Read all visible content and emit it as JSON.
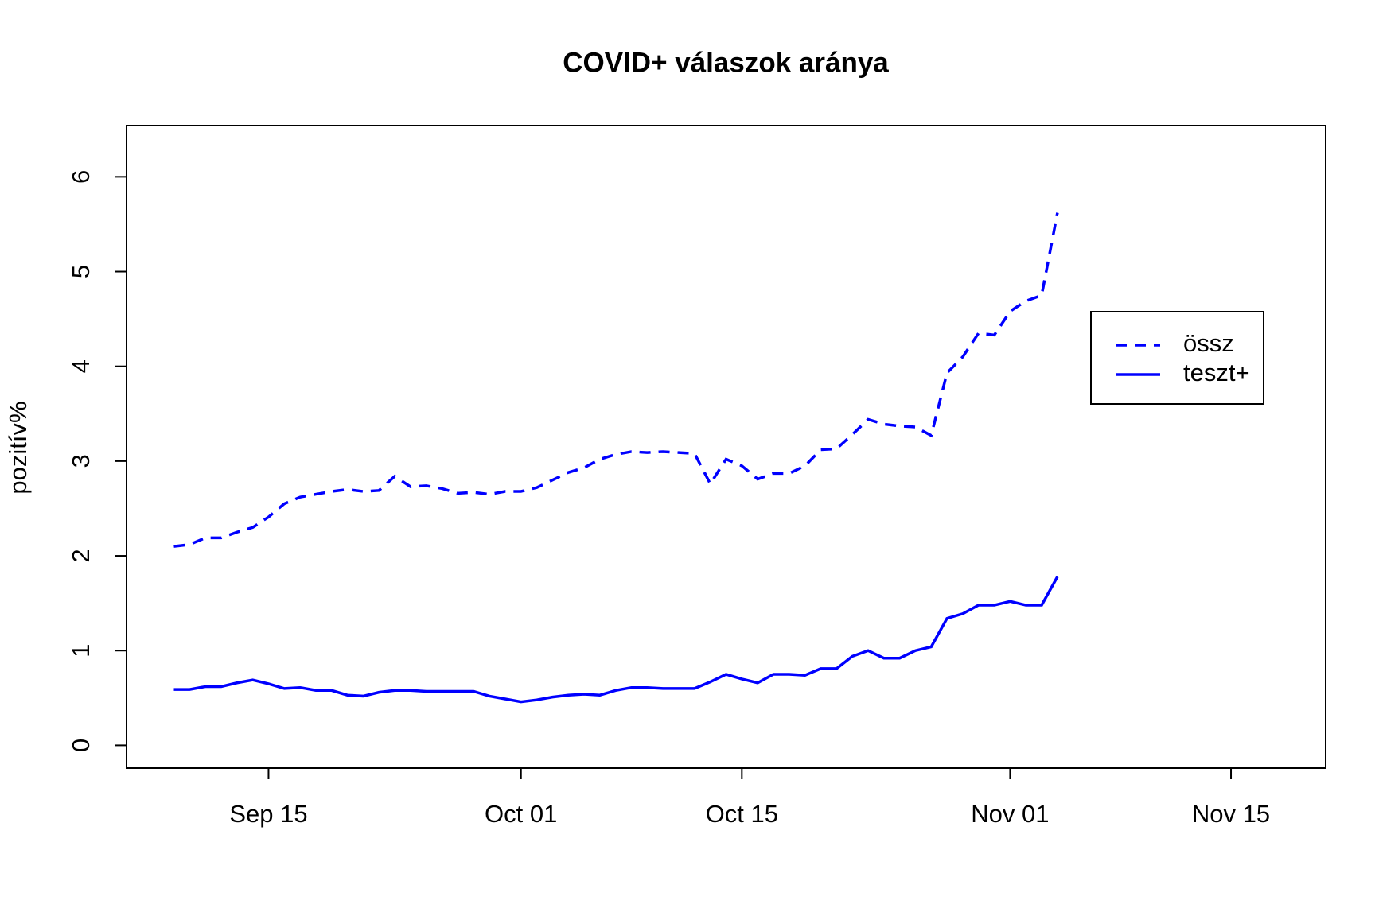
{
  "chart_data": {
    "type": "line",
    "title": "COVID+ válaszok aránya",
    "y_label": "pozitív%",
    "x": [
      "Sep 09",
      "Sep 10",
      "Sep 11",
      "Sep 12",
      "Sep 13",
      "Sep 14",
      "Sep 15",
      "Sep 16",
      "Sep 17",
      "Sep 18",
      "Sep 19",
      "Sep 20",
      "Sep 21",
      "Sep 22",
      "Sep 23",
      "Sep 24",
      "Sep 25",
      "Sep 26",
      "Sep 27",
      "Sep 28",
      "Sep 29",
      "Sep 30",
      "Oct 01",
      "Oct 02",
      "Oct 03",
      "Oct 04",
      "Oct 05",
      "Oct 06",
      "Oct 07",
      "Oct 08",
      "Oct 09",
      "Oct 10",
      "Oct 11",
      "Oct 12",
      "Oct 13",
      "Oct 14",
      "Oct 15",
      "Oct 16",
      "Oct 17",
      "Oct 18",
      "Oct 19",
      "Oct 20",
      "Oct 21",
      "Oct 22",
      "Oct 23",
      "Oct 24",
      "Oct 25",
      "Oct 26",
      "Oct 27",
      "Oct 28",
      "Oct 29",
      "Oct 30",
      "Oct 31",
      "Nov 01",
      "Nov 02",
      "Nov 03",
      "Nov 04"
    ],
    "series": [
      {
        "name": "össz",
        "color": "#0000ff",
        "line_style": "dashed",
        "values": [
          2.1,
          2.12,
          2.19,
          2.19,
          2.25,
          2.3,
          2.41,
          2.55,
          2.62,
          2.65,
          2.68,
          2.7,
          2.68,
          2.69,
          2.84,
          2.73,
          2.74,
          2.71,
          2.66,
          2.67,
          2.65,
          2.68,
          2.68,
          2.72,
          2.8,
          2.88,
          2.93,
          3.02,
          3.07,
          3.1,
          3.09,
          3.1,
          3.09,
          3.08,
          2.76,
          3.02,
          2.95,
          2.81,
          2.87,
          2.87,
          2.95,
          3.12,
          3.13,
          3.28,
          3.44,
          3.39,
          3.37,
          3.36,
          3.27,
          3.93,
          4.1,
          4.35,
          4.33,
          4.58,
          4.69,
          4.75,
          5.62
        ]
      },
      {
        "name": "teszt+",
        "color": "#0000ff",
        "line_style": "solid",
        "values": [
          0.59,
          0.59,
          0.62,
          0.62,
          0.66,
          0.69,
          0.65,
          0.6,
          0.61,
          0.58,
          0.58,
          0.53,
          0.52,
          0.56,
          0.58,
          0.58,
          0.57,
          0.57,
          0.57,
          0.57,
          0.52,
          0.49,
          0.46,
          0.48,
          0.51,
          0.53,
          0.54,
          0.53,
          0.58,
          0.61,
          0.61,
          0.6,
          0.6,
          0.6,
          0.67,
          0.75,
          0.7,
          0.66,
          0.75,
          0.75,
          0.74,
          0.81,
          0.81,
          0.94,
          1.0,
          0.92,
          0.92,
          1.0,
          1.04,
          1.34,
          1.39,
          1.48,
          1.48,
          1.52,
          1.48,
          1.48,
          1.78
        ]
      }
    ],
    "xlim": [
      "Sep 06",
      "Nov 21"
    ],
    "xticks": [
      "Sep 15",
      "Oct 01",
      "Oct 15",
      "Nov 01",
      "Nov 15"
    ],
    "ylim": [
      -0.24,
      6.54
    ],
    "yticks": [
      0,
      1,
      2,
      3,
      4,
      5,
      6
    ],
    "grid": false,
    "legend": "right"
  }
}
